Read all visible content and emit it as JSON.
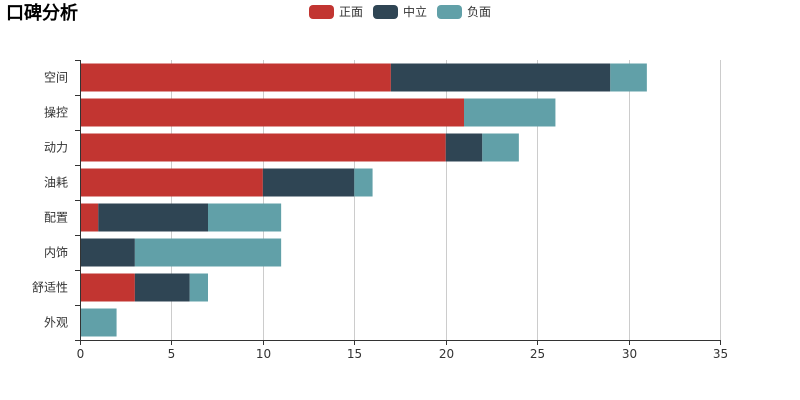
{
  "title": "口碑分析",
  "chart_data": {
    "type": "bar",
    "orientation": "horizontal",
    "stacked": true,
    "title": "口碑分析",
    "categories": [
      "空间",
      "操控",
      "动力",
      "油耗",
      "配置",
      "内饰",
      "舒适性",
      "外观"
    ],
    "series": [
      {
        "name": "正面",
        "color": "#c23531",
        "values": [
          17,
          21,
          20,
          10,
          1,
          0,
          3,
          0
        ]
      },
      {
        "name": "中立",
        "color": "#2f4554",
        "values": [
          12,
          0,
          2,
          5,
          6,
          3,
          3,
          0
        ]
      },
      {
        "name": "负面",
        "color": "#61a0a8",
        "values": [
          2,
          5,
          2,
          1,
          4,
          8,
          1,
          2
        ]
      }
    ],
    "xlim": [
      0,
      35
    ],
    "xticks": [
      0,
      5,
      10,
      15,
      20,
      25,
      30,
      35
    ],
    "xlabel": "",
    "ylabel": "",
    "grid": true,
    "legend_position": "top-center"
  }
}
